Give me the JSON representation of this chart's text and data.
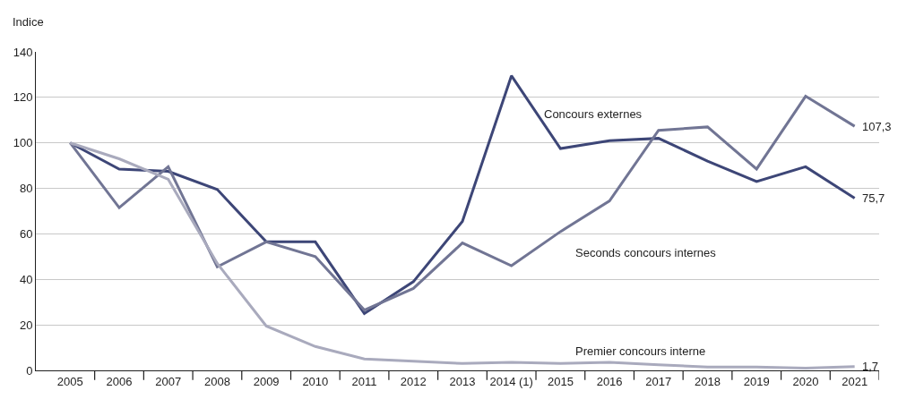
{
  "chart_data": {
    "type": "line",
    "ylabel": "Indice",
    "categories": [
      "2005",
      "2006",
      "2007",
      "2008",
      "2009",
      "2010",
      "2011",
      "2012",
      "2013",
      "2014 (1)",
      "2015",
      "2016",
      "2017",
      "2018",
      "2019",
      "2020",
      "2021"
    ],
    "series": [
      {
        "name": "Concours externes",
        "color": "#3d4677",
        "values": [
          100,
          88.5,
          87.5,
          79.5,
          56.5,
          56.5,
          25,
          39,
          65.5,
          129.5,
          97.5,
          101,
          102,
          92,
          83,
          89.5,
          75.7
        ],
        "value_labels": [
          null,
          null,
          null,
          null,
          null,
          null,
          null,
          null,
          null,
          null,
          null,
          null,
          null,
          null,
          null,
          null,
          "75,7"
        ]
      },
      {
        "name": "Seconds concours internes",
        "color": "#717594",
        "values": [
          100,
          71.5,
          89.5,
          45.5,
          56.5,
          50,
          26.5,
          36,
          56,
          46,
          61,
          74.5,
          105.5,
          107,
          88.5,
          120.5,
          107.3
        ],
        "value_labels": [
          null,
          null,
          null,
          null,
          null,
          null,
          null,
          null,
          null,
          null,
          null,
          null,
          null,
          null,
          null,
          null,
          "107,3"
        ]
      },
      {
        "name": "Premier concours interne",
        "color": "#a9aabd",
        "values": [
          100,
          93,
          84,
          47,
          19.5,
          10.5,
          5,
          4,
          3,
          3.5,
          3,
          3.5,
          2.5,
          1.5,
          1.5,
          1,
          1.7
        ],
        "value_labels": [
          null,
          null,
          null,
          null,
          null,
          null,
          null,
          null,
          null,
          null,
          null,
          null,
          null,
          null,
          null,
          null,
          "1,7"
        ]
      }
    ],
    "ylim": [
      0,
      140
    ],
    "yticks": [
      0,
      20,
      40,
      60,
      80,
      100,
      120,
      140
    ],
    "grid": "y",
    "legend": false,
    "marker": "none",
    "line_style": "solid"
  }
}
